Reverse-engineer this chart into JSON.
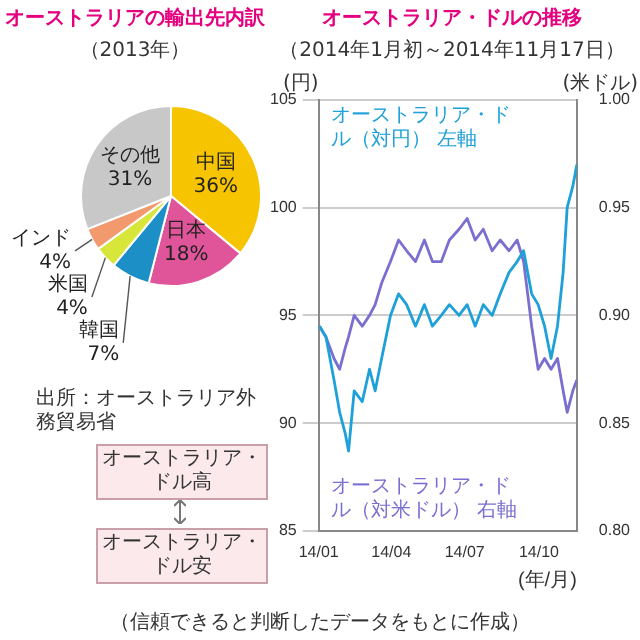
{
  "chart_data": [
    {
      "type": "pie",
      "title": "オーストラリアの輸出先内訳",
      "subtitle": "（2013年）",
      "categories": [
        "中国",
        "日本",
        "韓国",
        "米国",
        "インド",
        "その他"
      ],
      "values": [
        36,
        18,
        7,
        4,
        4,
        31
      ],
      "value_labels": [
        "36%",
        "18%",
        "7%",
        "4%",
        "4%",
        "31%"
      ],
      "colors": [
        "#f6c400",
        "#e0559a",
        "#1b8fc6",
        "#d8e63a",
        "#f29a6e",
        "#c8c8c8"
      ],
      "annotations": [
        "出所：オーストラリア外務貿易省"
      ]
    },
    {
      "type": "line",
      "title": "オーストラリア・ドルの推移",
      "subtitle": "（2014年1月初～2014年11月17日）",
      "ylabel": "(円)",
      "y2label": "(米ドル)",
      "xlabel": "(年/月)",
      "xlim": [
        "2014-01-01",
        "2014-11-17"
      ],
      "xticks": [
        {
          "value": "2014-01-01",
          "label": "14/01"
        },
        {
          "value": "2014-04-01",
          "label": "14/04"
        },
        {
          "value": "2014-07-01",
          "label": "14/07"
        },
        {
          "value": "2014-10-01",
          "label": "14/10"
        }
      ],
      "ylim": [
        85,
        105
      ],
      "yticks": [
        85,
        90,
        95,
        100,
        105
      ],
      "y2lim": [
        0.8,
        1.0
      ],
      "y2ticks": [
        {
          "value": 0.8,
          "label": "0.80"
        },
        {
          "value": 0.85,
          "label": "0.85"
        },
        {
          "value": 0.9,
          "label": "0.90"
        },
        {
          "value": 0.95,
          "label": "0.95"
        },
        {
          "value": 1.0,
          "label": "1.00"
        }
      ],
      "grid": "y",
      "annotations": [
        "オーストラリア・ドル高",
        "オーストラリア・ドル安",
        "（信頼できると判断したデータをもとに作成）"
      ],
      "x": [
        "2014-01-02",
        "2014-01-10",
        "2014-01-20",
        "2014-01-27",
        "2014-02-03",
        "2014-02-07",
        "2014-02-14",
        "2014-02-24",
        "2014-03-05",
        "2014-03-12",
        "2014-03-20",
        "2014-03-31",
        "2014-04-10",
        "2014-04-20",
        "2014-05-01",
        "2014-05-12",
        "2014-05-22",
        "2014-06-02",
        "2014-06-12",
        "2014-06-24",
        "2014-07-04",
        "2014-07-14",
        "2014-07-24",
        "2014-08-04",
        "2014-08-14",
        "2014-08-25",
        "2014-09-04",
        "2014-09-12",
        "2014-09-22",
        "2014-09-30",
        "2014-10-08",
        "2014-10-16",
        "2014-10-24",
        "2014-10-31",
        "2014-11-05",
        "2014-11-12",
        "2014-11-17"
      ],
      "series": [
        {
          "name": "オーストラリア・ドル（対円） 左軸",
          "color": "#1ea0d8",
          "values": [
            94.5,
            94,
            92,
            90.5,
            89.5,
            88.7,
            91.5,
            91,
            92.5,
            91.5,
            93,
            95,
            96,
            95.5,
            94.5,
            95.5,
            94.5,
            95,
            95.5,
            95,
            95.5,
            94.5,
            95.5,
            95,
            96,
            97,
            97.5,
            98,
            96,
            95.5,
            94.5,
            93,
            94.5,
            97,
            100,
            101,
            102
          ]
        },
        {
          "name": "オーストラリア・ドル（対米ドル） 右軸",
          "color": "#7a6fd0",
          "axis": "y2",
          "values": [
            0.895,
            0.89,
            0.88,
            0.875,
            0.885,
            0.89,
            0.9,
            0.895,
            0.9,
            0.905,
            0.915,
            0.925,
            0.935,
            0.93,
            0.925,
            0.935,
            0.925,
            0.925,
            0.935,
            0.94,
            0.945,
            0.935,
            0.94,
            0.93,
            0.935,
            0.93,
            0.935,
            0.925,
            0.895,
            0.875,
            0.88,
            0.875,
            0.88,
            0.865,
            0.855,
            0.865,
            0.87
          ]
        }
      ]
    }
  ]
}
